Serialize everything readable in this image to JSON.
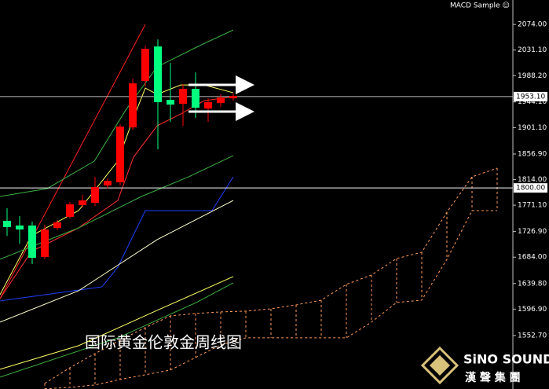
{
  "header": {
    "indicator": "MACD Sample ☺"
  },
  "overlay_title": "国际黄金伦敦金周线图",
  "logo": {
    "name": "SiNO SOUND",
    "subtitle": "漢 聲 集 團"
  },
  "chart_data": {
    "type": "candlestick",
    "ylim": [
      1463,
      2115
    ],
    "xlim": [
      -0.5,
      40
    ],
    "yticks": [
      {
        "value": 2074,
        "label": "2074.00"
      },
      {
        "value": 2031.1,
        "label": "2031.10"
      },
      {
        "value": 1988.2,
        "label": "1988.20"
      },
      {
        "value": 1944.1,
        "label": "1944.10"
      },
      {
        "value": 1901.1,
        "label": "1901.10"
      },
      {
        "value": 1856.9,
        "label": "1856.90"
      },
      {
        "value": 1814,
        "label": "1814.00"
      },
      {
        "value": 1771.1,
        "label": "1771.10"
      },
      {
        "value": 1726.9,
        "label": "1726.90"
      },
      {
        "value": 1684,
        "label": "1684.00"
      },
      {
        "value": 1639.8,
        "label": "1639.80"
      },
      {
        "value": 1596.9,
        "label": "1596.90"
      },
      {
        "value": 1552.7,
        "label": "1552.70"
      }
    ],
    "up_color": "#ff0000",
    "down_color": "#00ff7f",
    "x": [
      0,
      1,
      2,
      3,
      4,
      5,
      6,
      7,
      8,
      9,
      10,
      11,
      12,
      13,
      14,
      15,
      16,
      17,
      18
    ],
    "open": [
      1744.9,
      1737.0,
      1737.0,
      1684.3,
      1733.0,
      1751.5,
      1771.2,
      1775.2,
      1804.1,
      1809.4,
      1901.5,
      1979.2,
      2037.1,
      1947.6,
      1941.0,
      1966.0,
      1933.1,
      1942.3,
      1950.2
    ],
    "high": [
      1766.0,
      1752.8,
      1743.6,
      1738.3,
      1746.2,
      1776.5,
      1788.3,
      1818.6,
      1816.0,
      1906.8,
      1983.2,
      2038.4,
      2049.0,
      2009.5,
      1973.9,
      1993.7,
      1950.2,
      1956.8,
      1958.1
    ],
    "low": [
      1719.9,
      1706.7,
      1672.5,
      1680.4,
      1729.1,
      1748.8,
      1767.3,
      1769.9,
      1798.9,
      1804.1,
      1897.6,
      1970.0,
      1864.7,
      1910.8,
      1904.2,
      1917.3,
      1910.8,
      1935.8,
      1946.3
    ],
    "close": [
      1734.4,
      1730.4,
      1683.0,
      1730.4,
      1742.3,
      1772.5,
      1779.1,
      1801.5,
      1812.0,
      1902.9,
      1975.3,
      2033.2,
      1943.7,
      1939.7,
      1966.0,
      1934.5,
      1943.7,
      1951.6,
      1954.2
    ],
    "lines": [
      {
        "color": "#ff2020",
        "x": [
          -0.56,
          11
        ],
        "values": [
          1614.6,
          2074.0
        ]
      },
      {
        "color": "#ffff66",
        "x": [
          -0.56,
          1.94,
          5.69,
          8.81,
          10.06,
          11,
          11.94,
          13.81,
          15.69,
          18
        ],
        "values": [
          1621.2,
          1719.9,
          1762.0,
          1844.9,
          1917.3,
          1967.4,
          1956.8,
          1972.6,
          1972.6,
          1959.5
        ]
      },
      {
        "color": "#ff3030",
        "x": [
          -0.56,
          1.94,
          5.69,
          8.81,
          10.06,
          11.94,
          13.81,
          15.69,
          18
        ],
        "values": [
          1614.6,
          1693.6,
          1733.0,
          1779.1,
          1851.5,
          1904.2,
          1923.9,
          1946.3,
          1952.9
        ]
      },
      {
        "color": "#3cb043",
        "x": [
          -0.56,
          3.19,
          6.94,
          9.44,
          11.94,
          15.06,
          18
        ],
        "values": [
          1785.7,
          1798.9,
          1844.9,
          1930.5,
          2002.9,
          2035.8,
          2064.8
        ]
      },
      {
        "color": "#3cb043",
        "x": [
          -0.56,
          5.69,
          10.69,
          14.44,
          18
        ],
        "values": [
          1680.4,
          1733.0,
          1785.7,
          1818.6,
          1854.1
        ]
      },
      {
        "color": "#2040ff",
        "x": [
          -0.56,
          7.56,
          8.81,
          11,
          16.31,
          18
        ],
        "values": [
          1610.6,
          1634.3,
          1667.2,
          1762.0,
          1762.0,
          1818.6
        ]
      },
      {
        "color": "#ffffcc",
        "x": [
          -0.56,
          5.69,
          11.94,
          18
        ],
        "values": [
          1575.1,
          1627.7,
          1713.3,
          1779.1
        ]
      },
      {
        "color": "#ffff66",
        "x": [
          -0.56,
          5.69,
          11.94,
          18
        ],
        "values": [
          1496.1,
          1535.6,
          1594.8,
          1651.4
        ]
      },
      {
        "color": "#3cb043",
        "x": [
          -0.56,
          8.81,
          15.06,
          18
        ],
        "values": [
          1482.9,
          1548.7,
          1608.0,
          1640.9
        ]
      }
    ],
    "cloud": {
      "color": "#ff9a5a",
      "x": [
        3,
        5,
        7,
        9,
        11,
        13,
        15,
        17,
        19,
        21,
        23,
        25,
        27,
        29,
        31,
        33,
        35,
        37,
        39
      ],
      "upper": [
        1472.4,
        1498.7,
        1522.4,
        1544.8,
        1565.9,
        1585.6,
        1589.6,
        1592.2,
        1593.5,
        1597.4,
        1604.0,
        1611.9,
        1638.3,
        1654.1,
        1681.7,
        1692.2,
        1759.4,
        1818.6,
        1833.1
      ],
      "lower": [
        1463.2,
        1465.8,
        1469.8,
        1479.0,
        1486.9,
        1494.8,
        1515.8,
        1536.9,
        1548.7,
        1548.7,
        1548.7,
        1548.7,
        1548.7,
        1575.1,
        1608.0,
        1611.9,
        1680.4,
        1762.0,
        1762.0
      ]
    },
    "price_lines": [
      {
        "value": 1953.1,
        "label": "1953.10",
        "color": "#c0c0c0"
      },
      {
        "value": 1800,
        "label": "1800.00",
        "color": "#ffffff"
      }
    ]
  }
}
